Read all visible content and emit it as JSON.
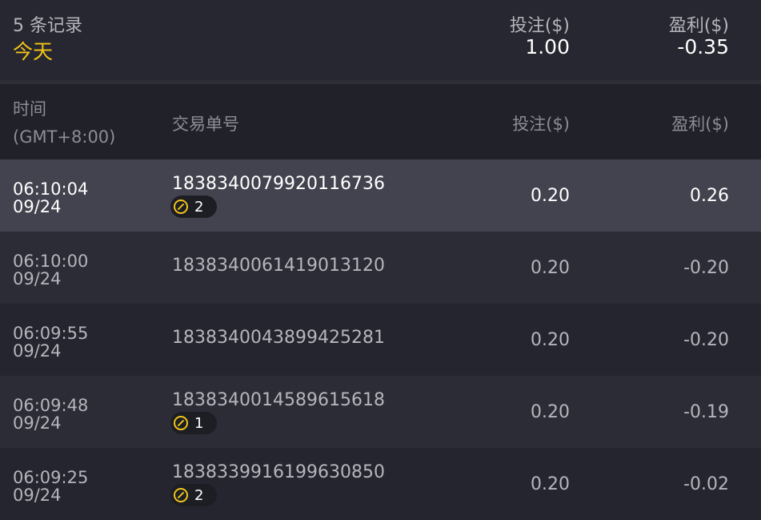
{
  "summary": {
    "count_label": "5 条记录",
    "period": "今天",
    "bet_label": "投注($)",
    "bet_total": "1.00",
    "profit_label": "盈利($)",
    "profit_total": "-0.35"
  },
  "columns": {
    "time": "时间",
    "timezone": "(GMT+8:00)",
    "id": "交易单号",
    "bet": "投注($)",
    "profit": "盈利($)"
  },
  "colors": {
    "accent": "#f0c419",
    "bg": "#262630",
    "highlight_row": "#43434f"
  },
  "rows": [
    {
      "time": "06:10:04",
      "date": "09/24",
      "id": "1838340079920116736",
      "badge": "2",
      "bet": "0.20",
      "profit": "0.26"
    },
    {
      "time": "06:10:00",
      "date": "09/24",
      "id": "1838340061419013120",
      "badge": null,
      "bet": "0.20",
      "profit": "-0.20"
    },
    {
      "time": "06:09:55",
      "date": "09/24",
      "id": "1838340043899425281",
      "badge": null,
      "bet": "0.20",
      "profit": "-0.20"
    },
    {
      "time": "06:09:48",
      "date": "09/24",
      "id": "1838340014589615618",
      "badge": "1",
      "bet": "0.20",
      "profit": "-0.19"
    },
    {
      "time": "06:09:25",
      "date": "09/24",
      "id": "1838339916199630850",
      "badge": "2",
      "bet": "0.20",
      "profit": "-0.02"
    }
  ]
}
